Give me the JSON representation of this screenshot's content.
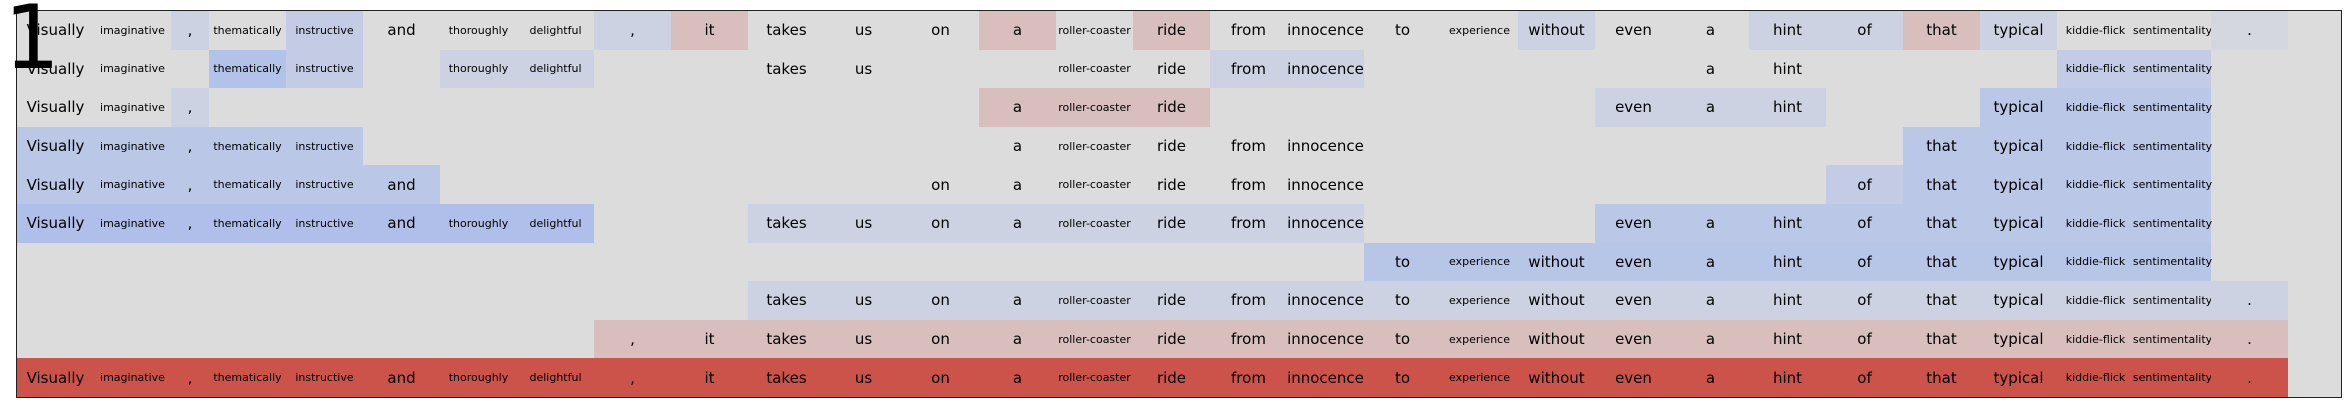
{
  "figure_label": "1",
  "tokens": [
    "Visually",
    "imaginative",
    ",",
    "thematically",
    "instructive",
    "and",
    "thoroughly",
    "delightful",
    ",",
    "it",
    "takes",
    "us",
    "on",
    "a",
    "roller-coaster",
    "ride",
    "from",
    "innocence",
    "to",
    "experience",
    "without",
    "even",
    "a",
    "hint",
    "of",
    "that",
    "typical",
    "kiddie-flick",
    "sentimentality",
    "."
  ],
  "rows": [
    {
      "shown": [
        1,
        1,
        1,
        1,
        1,
        1,
        1,
        1,
        1,
        1,
        1,
        1,
        1,
        1,
        1,
        1,
        1,
        1,
        1,
        1,
        1,
        1,
        1,
        1,
        1,
        1,
        1,
        1,
        1,
        1
      ],
      "weights": [
        0,
        0,
        -0.2,
        0,
        -0.3,
        0,
        0,
        0,
        -0.2,
        0.2,
        0,
        0,
        0,
        0.2,
        0,
        0.2,
        0,
        0,
        0,
        0,
        -0.2,
        0,
        0,
        -0.2,
        -0.2,
        0.2,
        -0.2,
        0,
        0,
        -0.1
      ]
    },
    {
      "shown": [
        1,
        1,
        0,
        1,
        1,
        0,
        1,
        1,
        0,
        0,
        1,
        1,
        0,
        0,
        1,
        1,
        1,
        1,
        0,
        0,
        0,
        0,
        1,
        1,
        0,
        0,
        0,
        1,
        1,
        0
      ],
      "weights": [
        0,
        0,
        0,
        -0.5,
        -0.3,
        0,
        -0.2,
        -0.2,
        0,
        0,
        0,
        0,
        0,
        0,
        0,
        0,
        -0.2,
        -0.2,
        0,
        0,
        0,
        0,
        0,
        0,
        0,
        0,
        0,
        -0.3,
        -0.3,
        0
      ]
    },
    {
      "shown": [
        1,
        1,
        1,
        0,
        0,
        0,
        0,
        0,
        0,
        0,
        0,
        0,
        0,
        1,
        1,
        1,
        0,
        0,
        0,
        0,
        0,
        1,
        1,
        1,
        0,
        0,
        1,
        1,
        1,
        0
      ],
      "weights": [
        0,
        0,
        -0.2,
        0,
        0,
        0,
        0,
        0,
        0,
        0,
        0,
        0,
        0,
        0.2,
        0.2,
        0.2,
        0,
        0,
        0,
        0,
        0,
        -0.2,
        -0.2,
        -0.2,
        0,
        0,
        -0.4,
        -0.4,
        -0.4,
        0
      ]
    },
    {
      "shown": [
        1,
        1,
        1,
        1,
        1,
        0,
        0,
        0,
        0,
        0,
        0,
        0,
        0,
        1,
        1,
        1,
        1,
        1,
        0,
        0,
        0,
        0,
        0,
        0,
        0,
        1,
        1,
        1,
        1,
        0
      ],
      "weights": [
        -0.4,
        -0.4,
        -0.4,
        -0.4,
        -0.4,
        0,
        0,
        0,
        0,
        0,
        0,
        0,
        0,
        0,
        0,
        0,
        0,
        0,
        0,
        0,
        0,
        0,
        0,
        0,
        0,
        -0.4,
        -0.4,
        -0.4,
        -0.4,
        0
      ]
    },
    {
      "shown": [
        1,
        1,
        1,
        1,
        1,
        1,
        0,
        0,
        0,
        0,
        0,
        0,
        1,
        1,
        1,
        1,
        1,
        1,
        0,
        0,
        0,
        0,
        0,
        0,
        1,
        1,
        1,
        1,
        1,
        0
      ],
      "weights": [
        -0.4,
        -0.4,
        -0.4,
        -0.4,
        -0.4,
        -0.4,
        0,
        0,
        0,
        0,
        0,
        0,
        0,
        0,
        0,
        0,
        0,
        0,
        0,
        0,
        0,
        0,
        0,
        0,
        -0.3,
        -0.4,
        -0.4,
        -0.4,
        -0.4,
        0
      ]
    },
    {
      "shown": [
        1,
        1,
        1,
        1,
        1,
        1,
        1,
        1,
        0,
        0,
        1,
        1,
        1,
        1,
        1,
        1,
        1,
        1,
        0,
        0,
        0,
        1,
        1,
        1,
        1,
        1,
        1,
        1,
        1,
        0
      ],
      "weights": [
        -0.55,
        -0.55,
        -0.55,
        -0.55,
        -0.55,
        -0.55,
        -0.55,
        -0.55,
        0,
        0,
        -0.2,
        -0.2,
        -0.2,
        -0.2,
        -0.2,
        -0.2,
        -0.2,
        -0.2,
        0,
        0,
        0,
        -0.4,
        -0.4,
        -0.4,
        -0.4,
        -0.4,
        -0.4,
        -0.4,
        -0.4,
        0
      ]
    },
    {
      "shown": [
        0,
        0,
        0,
        0,
        0,
        0,
        0,
        0,
        0,
        0,
        0,
        0,
        0,
        0,
        0,
        0,
        0,
        0,
        1,
        1,
        1,
        1,
        1,
        1,
        1,
        1,
        1,
        1,
        1,
        0
      ],
      "weights": [
        0,
        0,
        0,
        0,
        0,
        0,
        0,
        0,
        0,
        0,
        0,
        0,
        0,
        0,
        0,
        0,
        0,
        0,
        -0.45,
        -0.45,
        -0.45,
        -0.45,
        -0.45,
        -0.45,
        -0.45,
        -0.45,
        -0.45,
        -0.45,
        -0.45,
        0
      ]
    },
    {
      "shown": [
        0,
        0,
        0,
        0,
        0,
        0,
        0,
        0,
        0,
        0,
        1,
        1,
        1,
        1,
        1,
        1,
        1,
        1,
        1,
        1,
        1,
        1,
        1,
        1,
        1,
        1,
        1,
        1,
        1,
        1
      ],
      "weights": [
        0,
        0,
        0,
        0,
        0,
        0,
        0,
        0,
        0,
        0,
        -0.2,
        -0.2,
        -0.2,
        -0.2,
        -0.2,
        -0.2,
        -0.2,
        -0.2,
        -0.2,
        -0.2,
        -0.2,
        -0.2,
        -0.2,
        -0.2,
        -0.2,
        -0.2,
        -0.2,
        -0.2,
        -0.2,
        -0.2
      ]
    },
    {
      "shown": [
        0,
        0,
        0,
        0,
        0,
        0,
        0,
        0,
        1,
        1,
        1,
        1,
        1,
        1,
        1,
        1,
        1,
        1,
        1,
        1,
        1,
        1,
        1,
        1,
        1,
        1,
        1,
        1,
        1,
        1
      ],
      "weights": [
        0,
        0,
        0,
        0,
        0,
        0,
        0,
        0,
        0.2,
        0.2,
        0.2,
        0.2,
        0.2,
        0.2,
        0.2,
        0.2,
        0.2,
        0.2,
        0.2,
        0.2,
        0.2,
        0.2,
        0.2,
        0.2,
        0.2,
        0.2,
        0.2,
        0.2,
        0.2,
        0.2
      ]
    },
    {
      "shown": [
        1,
        1,
        1,
        1,
        1,
        1,
        1,
        1,
        1,
        1,
        1,
        1,
        1,
        1,
        1,
        1,
        1,
        1,
        1,
        1,
        1,
        1,
        1,
        1,
        1,
        1,
        1,
        1,
        1,
        1
      ],
      "weights": [
        0.9,
        0.9,
        0.9,
        0.9,
        0.9,
        0.9,
        0.9,
        0.9,
        0.9,
        0.9,
        0.9,
        0.9,
        0.9,
        0.9,
        0.9,
        0.9,
        0.9,
        0.9,
        0.9,
        0.9,
        0.9,
        0.9,
        0.9,
        0.9,
        0.9,
        0.9,
        0.9,
        0.9,
        0.9,
        0.9
      ]
    }
  ],
  "colors": {
    "background": "#dcdcdc",
    "positive": "#c9443a",
    "negative": "#8aa8f5",
    "border": "#222222"
  }
}
